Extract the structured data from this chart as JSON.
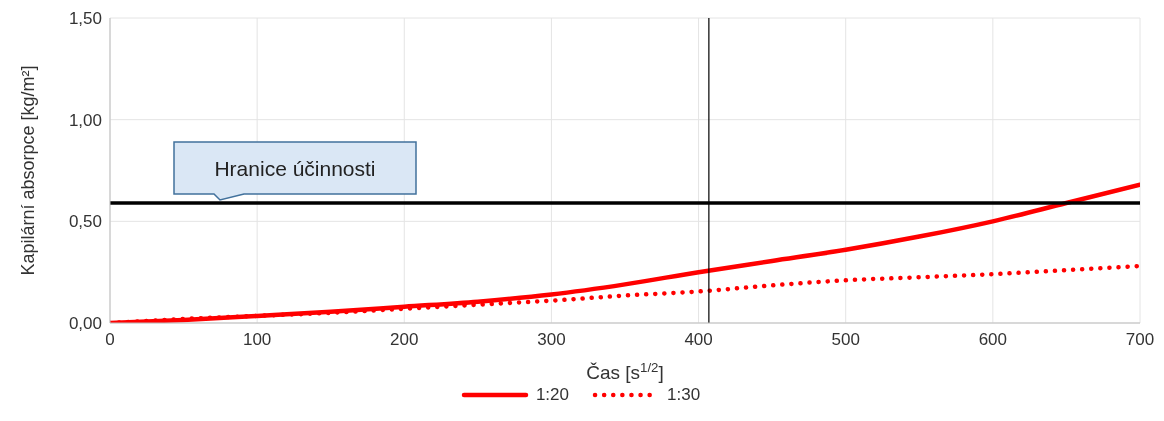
{
  "chart_data": {
    "type": "line",
    "xlabel": "Čas [s$^{1/2}$]",
    "ylabel": "Kapilární absorpce [kg/m²]",
    "x": [
      0,
      50,
      100,
      150,
      200,
      250,
      300,
      350,
      400,
      450,
      500,
      550,
      600,
      650,
      700
    ],
    "series": [
      {
        "name": "1:20",
        "color": "#ff0000",
        "line_style": "solid",
        "values": [
          0,
          0.015,
          0.035,
          0.055,
          0.08,
          0.105,
          0.14,
          0.19,
          0.25,
          0.305,
          0.36,
          0.425,
          0.5,
          0.59,
          0.68
        ]
      },
      {
        "name": "1:30",
        "color": "#ff0000",
        "line_style": "dotted",
        "values": [
          0,
          0.02,
          0.035,
          0.05,
          0.07,
          0.09,
          0.11,
          0.135,
          0.155,
          0.185,
          0.21,
          0.225,
          0.24,
          0.26,
          0.28
        ]
      }
    ],
    "xlim": [
      0,
      700
    ],
    "xticks": [
      0,
      100,
      200,
      300,
      400,
      500,
      600,
      700
    ],
    "ylim": [
      0,
      1.5
    ],
    "yticks": [
      {
        "value": 0,
        "label": "0,00"
      },
      {
        "value": 0.5,
        "label": "0,50"
      },
      {
        "value": 1,
        "label": "1,00"
      },
      {
        "value": 1.5,
        "label": "1,50"
      }
    ],
    "ref_lines": [
      {
        "axis": "y",
        "value": 0.59,
        "label": "Hranice účinnosti",
        "color": "#000000"
      },
      {
        "axis": "x",
        "value": 407,
        "color": "#000000"
      }
    ],
    "grid": true,
    "legend": "bottom",
    "marker": "none"
  }
}
